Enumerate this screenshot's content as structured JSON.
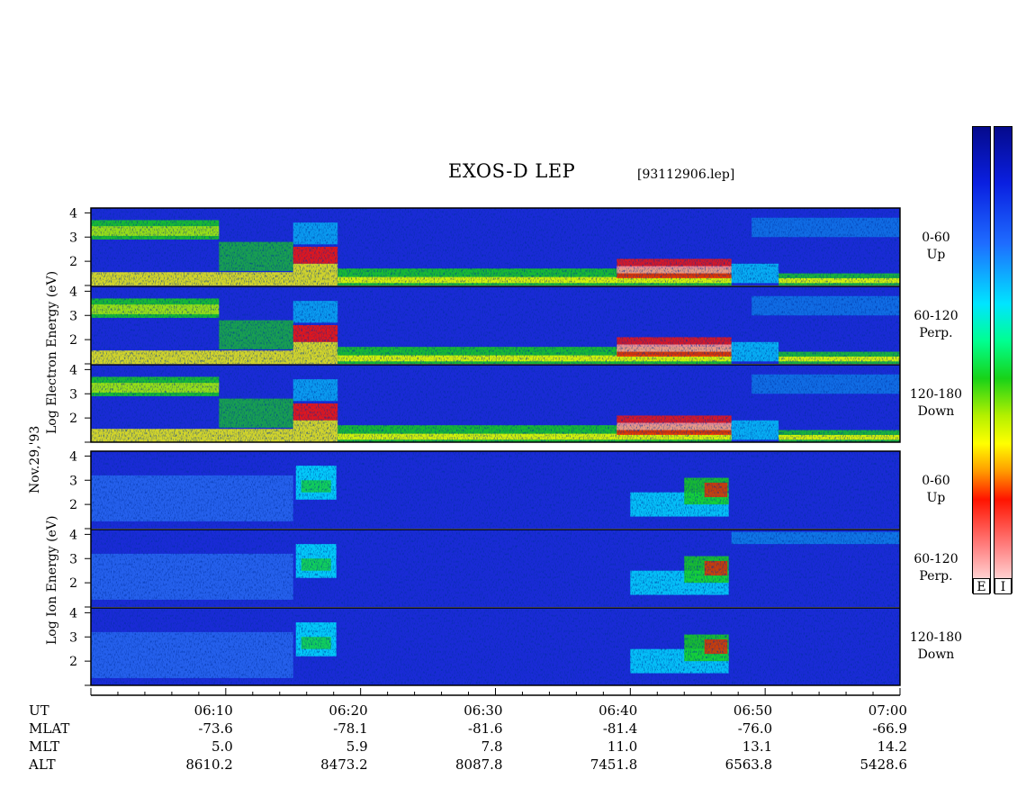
{
  "header": {
    "title": "EXOS-D LEP",
    "filename": "[93112906.lep]"
  },
  "side_labels": {
    "date": "Nov.29,'93",
    "electron_label": "Log  Electron  Energy (eV)",
    "ion_label": "Log  Ion  Energy (eV)"
  },
  "colorbars": [
    "E",
    "I"
  ],
  "panel_labels": [
    {
      "range": "0-60",
      "direction": "Up"
    },
    {
      "range": "60-120",
      "direction": "Perp."
    },
    {
      "range": "120-180",
      "direction": "Down"
    },
    {
      "range": "0-60",
      "direction": "Up"
    },
    {
      "range": "60-120",
      "direction": "Perp."
    },
    {
      "range": "120-180",
      "direction": "Down"
    }
  ],
  "axis_rows": [
    "UT",
    "MLAT",
    "MLT",
    "ALT"
  ],
  "axis_values": [
    {
      "ut": "06:10",
      "mlat": "-73.6",
      "mlt": "5.0",
      "alt": "8610.2"
    },
    {
      "ut": "06:20",
      "mlat": "-78.1",
      "mlt": "5.9",
      "alt": "8473.2"
    },
    {
      "ut": "06:30",
      "mlat": "-81.6",
      "mlt": "7.8",
      "alt": "8087.8"
    },
    {
      "ut": "06:40",
      "mlat": "-81.4",
      "mlt": "11.0",
      "alt": "7451.8"
    },
    {
      "ut": "06:50",
      "mlat": "-76.0",
      "mlt": "13.1",
      "alt": "6563.8"
    },
    {
      "ut": "07:00",
      "mlat": "-66.9",
      "mlt": "14.2",
      "alt": "5428.6"
    }
  ],
  "colors": {
    "background": "#1a2bd6",
    "dark": "#05106a",
    "cyan": "#00e5ff",
    "green": "#18d218",
    "yellow": "#ffff00",
    "red": "#ff1400",
    "white": "#ffffff"
  },
  "chart_data": {
    "type": "heatmap",
    "title": "EXOS-D LEP",
    "xlabel": "UT",
    "ylabel": "Log Energy (eV)",
    "x_ticks": [
      "06:10",
      "06:20",
      "06:30",
      "06:40",
      "06:50",
      "07:00"
    ],
    "xlim": [
      "06:00",
      "07:00"
    ],
    "ylim": [
      1,
      4.2
    ],
    "y_ticks": [
      2,
      3,
      4
    ],
    "grid": false,
    "panels": [
      {
        "species": "Electron",
        "pitch_angle": "0-60",
        "direction": "Up"
      },
      {
        "species": "Electron",
        "pitch_angle": "60-120",
        "direction": "Perp."
      },
      {
        "species": "Electron",
        "pitch_angle": "120-180",
        "direction": "Down"
      },
      {
        "species": "Ion",
        "pitch_angle": "0-60",
        "direction": "Up"
      },
      {
        "species": "Ion",
        "pitch_angle": "60-120",
        "direction": "Perp."
      },
      {
        "species": "Ion",
        "pitch_angle": "120-180",
        "direction": "Down"
      }
    ]
  }
}
